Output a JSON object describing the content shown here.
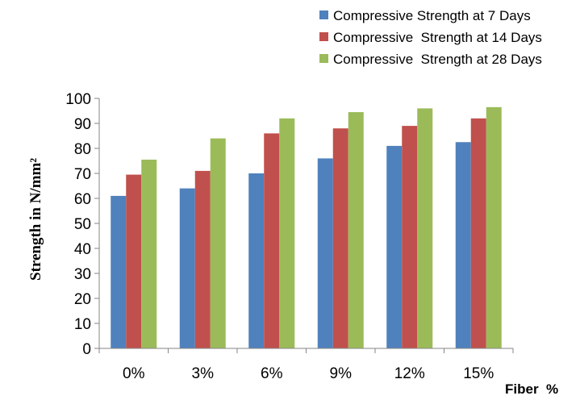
{
  "chart_data": {
    "type": "bar",
    "categories": [
      "0%",
      "3%",
      "6%",
      "9%",
      "12%",
      "15%"
    ],
    "series": [
      {
        "name": "Compressive Strength at 7 Days",
        "color": "#4f81bd",
        "values": [
          61,
          64,
          70,
          76,
          81,
          82.5
        ]
      },
      {
        "name": "Compressive  Strength at 14 Days",
        "color": "#c0504d",
        "values": [
          69.5,
          71,
          86,
          88,
          89,
          92
        ]
      },
      {
        "name": "Compressive  Strength at 28 Days",
        "color": "#9bbb59",
        "values": [
          75.5,
          84,
          92,
          94.5,
          96,
          96.5
        ]
      }
    ],
    "xlabel": "Fiber  %",
    "ylabel": "Strength in N/mm²",
    "ylim": [
      0,
      100
    ],
    "yticks": [
      "0",
      "10",
      "20",
      "30",
      "40",
      "50",
      "60",
      "70",
      "80",
      "90",
      "100"
    ],
    "grid": false,
    "legend_position": "top-right"
  }
}
